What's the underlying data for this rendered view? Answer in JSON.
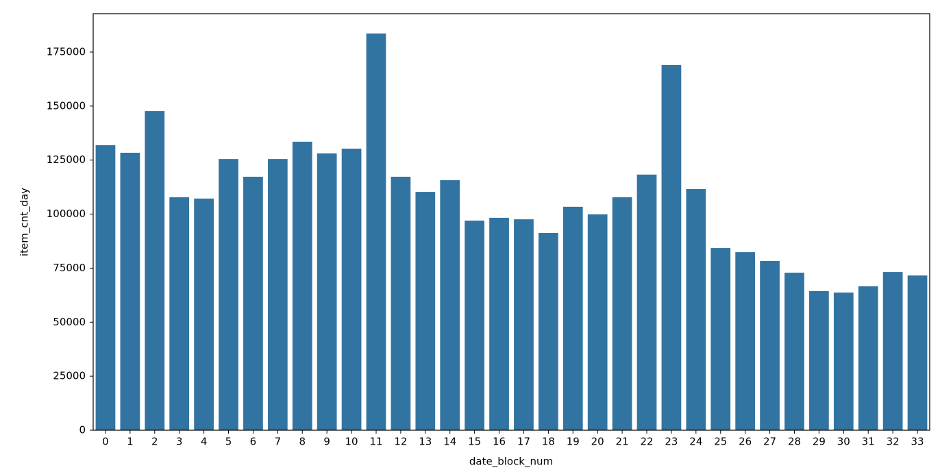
{
  "chart_data": {
    "type": "bar",
    "x_label": "date_block_num",
    "y_label": "item_cnt_day",
    "categories": [
      "0",
      "1",
      "2",
      "3",
      "4",
      "5",
      "6",
      "7",
      "8",
      "9",
      "10",
      "11",
      "12",
      "13",
      "14",
      "15",
      "16",
      "17",
      "18",
      "19",
      "20",
      "21",
      "22",
      "23",
      "24",
      "25",
      "26",
      "27",
      "28",
      "29",
      "30",
      "31",
      "32",
      "33"
    ],
    "values": [
      131900,
      128400,
      147700,
      107800,
      107200,
      125500,
      117300,
      125500,
      133500,
      128100,
      130300,
      183600,
      117300,
      110300,
      115700,
      97000,
      98300,
      97600,
      91300,
      103400,
      99900,
      107800,
      118300,
      169000,
      111600,
      84300,
      82400,
      78300,
      72900,
      64400,
      63700,
      66600,
      73200,
      71600
    ],
    "color": "#3274a1",
    "ylim": [
      0,
      192750
    ],
    "yticks": [
      0,
      25000,
      50000,
      75000,
      100000,
      125000,
      150000,
      175000
    ],
    "grid": false
  }
}
